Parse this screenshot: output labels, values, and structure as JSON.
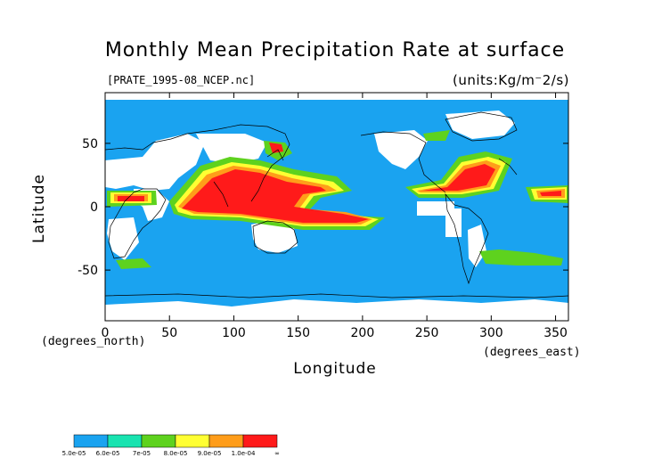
{
  "title": "Monthly Mean Precipitation Rate at surface",
  "file_label": "[PRATE_1995-08_NCEP.nc]",
  "units_label": "(units:Kg/m⁻2/s)",
  "axes": {
    "x_ticks": [
      "0",
      "50",
      "100",
      "150",
      "200",
      "250",
      "300",
      "350"
    ],
    "y_ticks": [
      "50",
      "0",
      "-50"
    ],
    "x_note": "(degrees_east)",
    "y_note": "(degrees_north)",
    "xlabel": "Longitude",
    "ylabel": "Latitude"
  },
  "colorbar": {
    "colors": [
      "#1aa3f0",
      "#19e3b0",
      "#5ed21e",
      "#ffff33",
      "#ff9d1a",
      "#ff1a1a"
    ],
    "labels": [
      "5.0e-05",
      "6.0e-05",
      "7e-05",
      "8.0e-05",
      "9.0e-05",
      "1.0e-04",
      "∞"
    ]
  },
  "map_colors": {
    "background": "#1aa3f0",
    "missing": "#ffffff",
    "coast": "#000000"
  }
}
